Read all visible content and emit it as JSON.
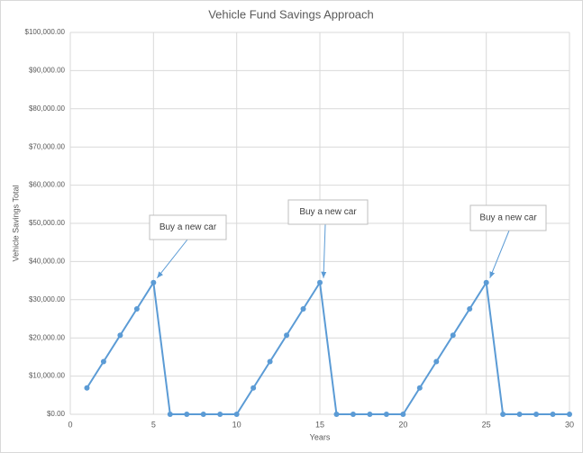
{
  "chart_data": {
    "type": "line",
    "title": "Vehicle Fund Savings Approach",
    "x_label": "Years",
    "y_label": "Vehicle Savings Total",
    "x": [
      1,
      2,
      3,
      4,
      5,
      6,
      7,
      8,
      9,
      10,
      11,
      12,
      13,
      14,
      15,
      16,
      17,
      18,
      19,
      20,
      21,
      22,
      23,
      24,
      25,
      26,
      27,
      28,
      29,
      30
    ],
    "series": [
      {
        "name": "Vehicle Savings Total",
        "color": "#5b9bd5",
        "values": [
          6900,
          13800,
          20700,
          27600,
          34500,
          0,
          0,
          0,
          0,
          0,
          6900,
          13800,
          20700,
          27600,
          34500,
          0,
          0,
          0,
          0,
          0,
          6900,
          13800,
          20700,
          27600,
          34500,
          0,
          0,
          0,
          0,
          0
        ]
      }
    ],
    "xlim": [
      0,
      30
    ],
    "xticks": [
      0,
      5,
      10,
      15,
      20,
      25,
      30
    ],
    "ylim": [
      0,
      100000
    ],
    "yticks": [
      {
        "value": 0,
        "label": "$0.00"
      },
      {
        "value": 10000,
        "label": "$10,000.00"
      },
      {
        "value": 20000,
        "label": "$20,000.00"
      },
      {
        "value": 30000,
        "label": "$30,000.00"
      },
      {
        "value": 40000,
        "label": "$40,000.00"
      },
      {
        "value": 50000,
        "label": "$50,000.00"
      },
      {
        "value": 60000,
        "label": "$60,000.00"
      },
      {
        "value": 70000,
        "label": "$70,000.00"
      },
      {
        "value": 80000,
        "label": "$80,000.00"
      },
      {
        "value": 90000,
        "label": "$90,000.00"
      },
      {
        "value": 100000,
        "label": "$100,000.00"
      }
    ],
    "grid": true,
    "annotations": [
      {
        "text": "Buy a new car",
        "x": 5
      },
      {
        "text": "Buy a new car",
        "x": 15
      },
      {
        "text": "Buy a new car",
        "x": 25
      }
    ]
  }
}
